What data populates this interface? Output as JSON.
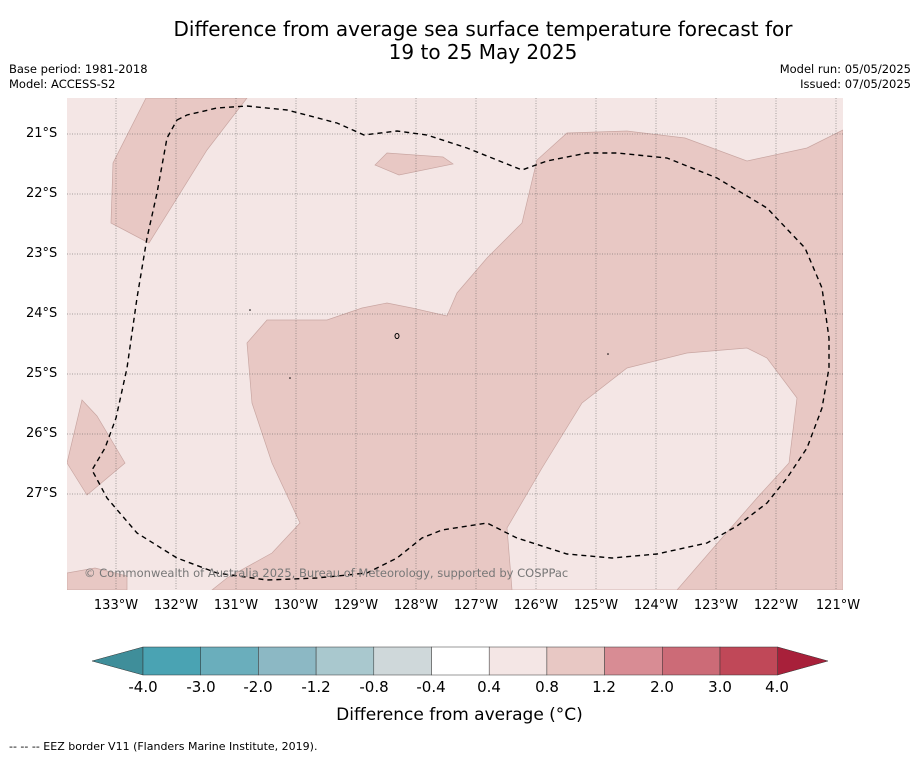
{
  "title_line1": "Difference from average sea surface temperature forecast for",
  "title_line2": "19 to 25 May 2025",
  "base_period": "Base period: 1981-2018",
  "model": "Model: ACCESS-S2",
  "model_run": "Model run: 05/05/2025",
  "issued": "Issued: 07/05/2025",
  "lat_labels": [
    "21°S",
    "22°S",
    "23°S",
    "24°S",
    "25°S",
    "26°S",
    "27°S"
  ],
  "lon_labels": [
    "133°W",
    "132°W",
    "131°W",
    "130°W",
    "129°W",
    "128°W",
    "127°W",
    "126°W",
    "125°W",
    "124°W",
    "123°W",
    "122°W",
    "121°W"
  ],
  "copyright": "© Commonwealth of Australia 2025, Bureau of Meteorology, supported by COSPPac",
  "colorbar": {
    "ticks": [
      "-4.0",
      "-3.0",
      "-2.0",
      "-1.2",
      "-0.8",
      "-0.4",
      "0.4",
      "0.8",
      "1.2",
      "2.0",
      "3.0",
      "4.0"
    ],
    "colors": [
      "#3f8e9a",
      "#4aa3b3",
      "#6aaebc",
      "#8cb8c4",
      "#a9c8ce",
      "#cfd8da",
      "#ffffff",
      "#f4e6e5",
      "#e8c8c4",
      "#d88c94",
      "#cc6b77",
      "#c04858",
      "#a8203a"
    ],
    "label": "Difference from average (°C)"
  },
  "footer": "-- -- -- EEZ border V11 (Flanders Marine Institute, 2019).",
  "map_colors": {
    "background": "#f4e6e5",
    "warm": "#e8c8c4",
    "outline": "#c9a6a2"
  }
}
